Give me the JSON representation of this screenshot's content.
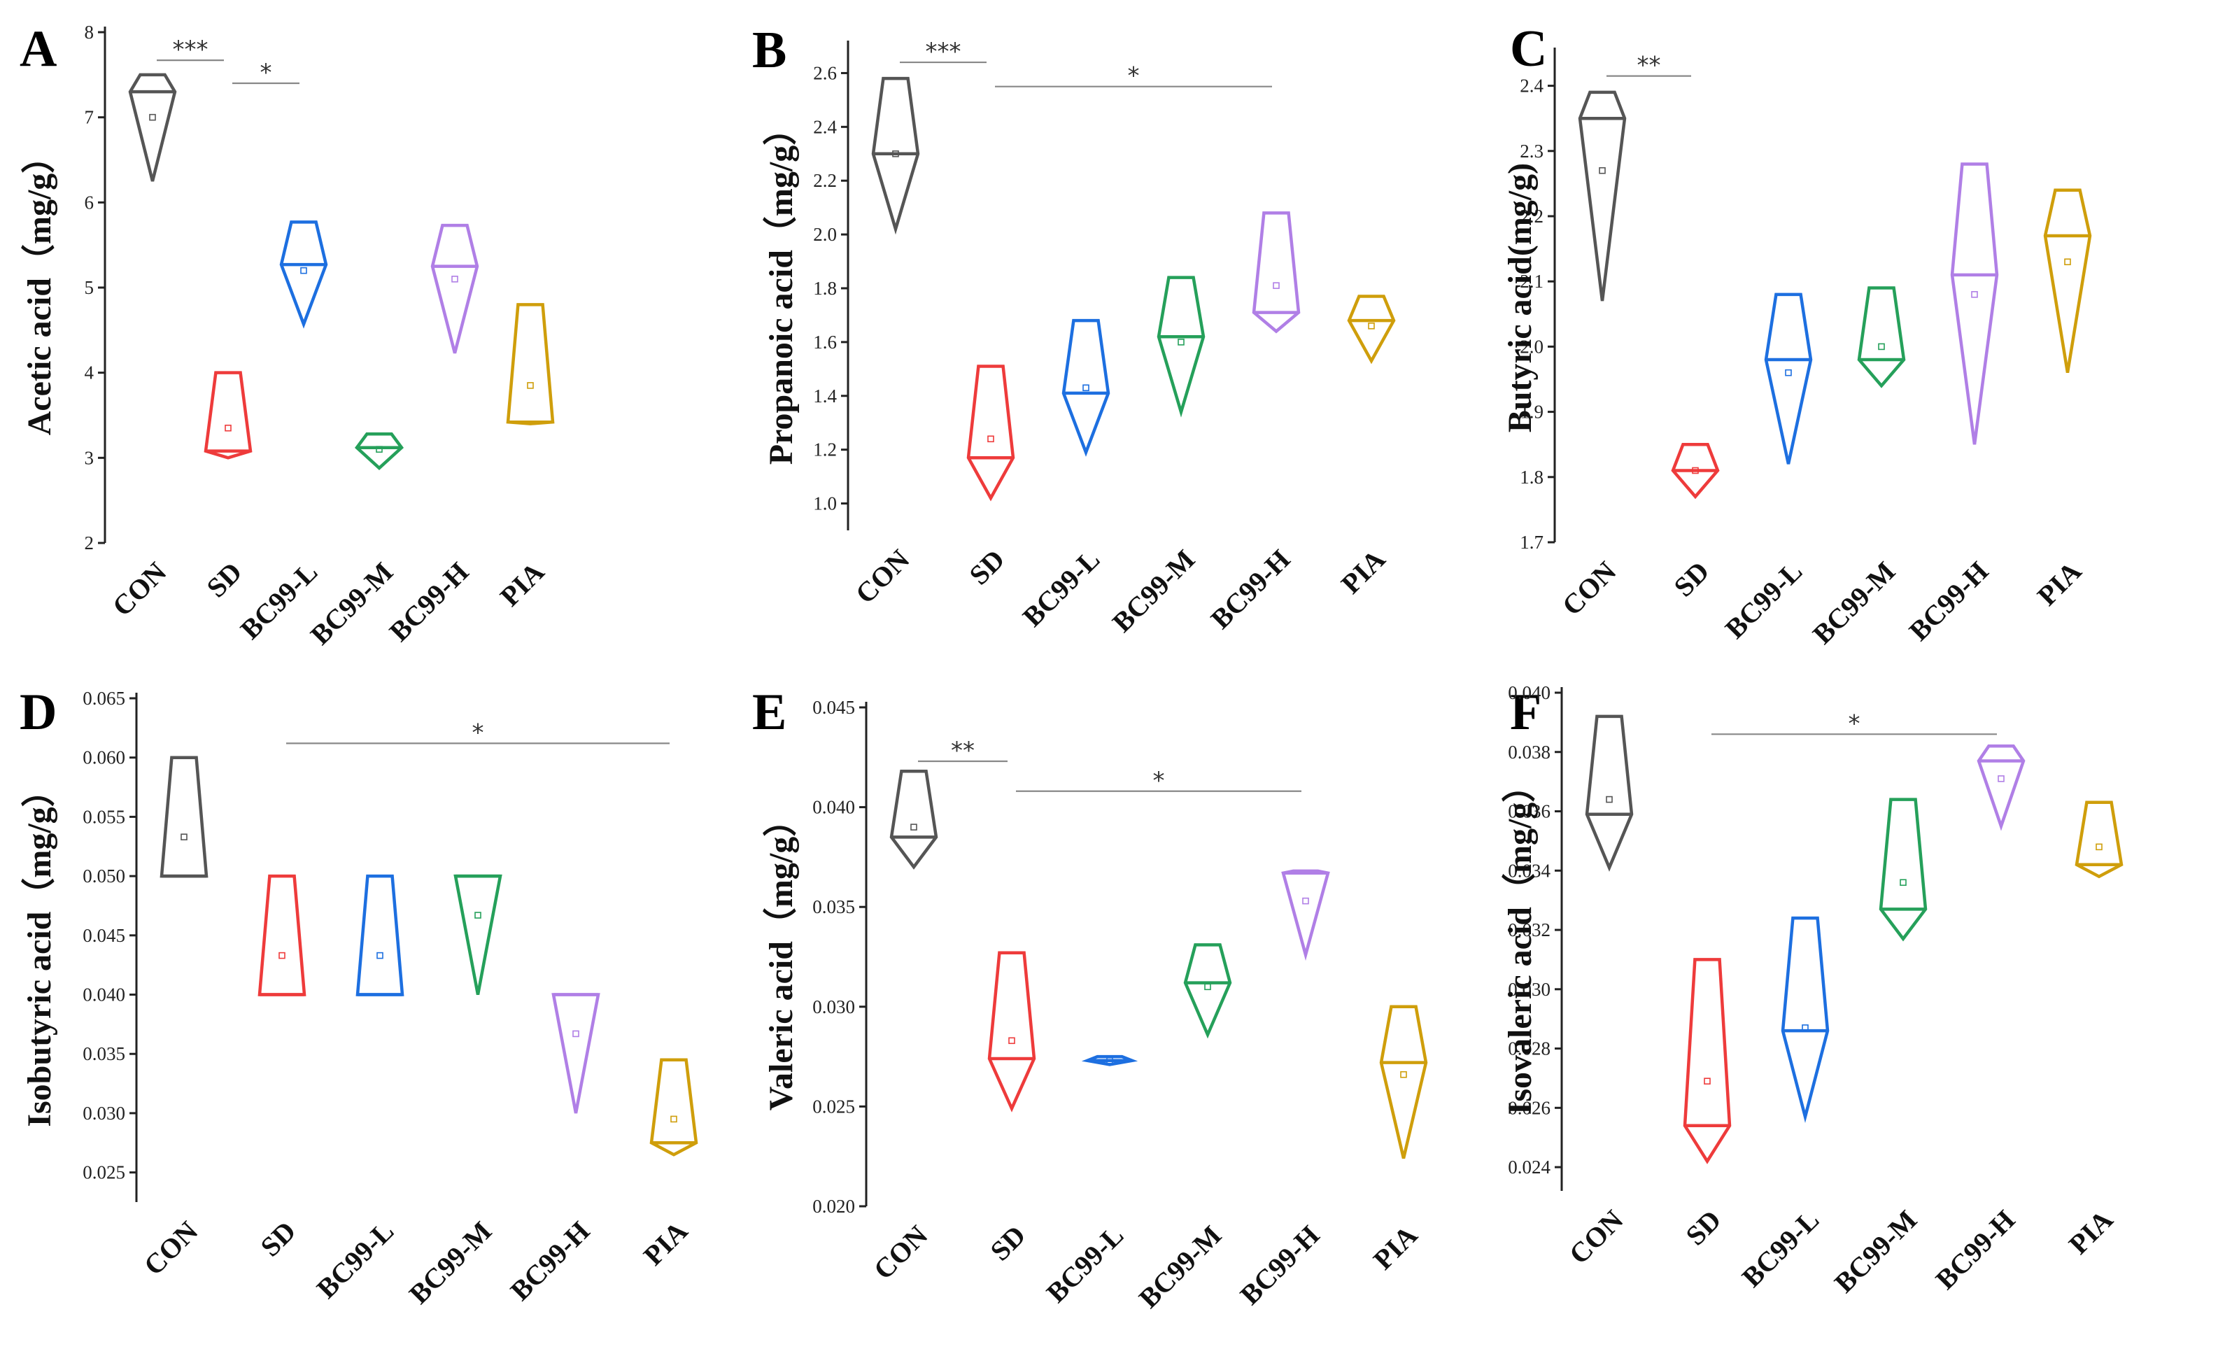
{
  "colors": {
    "CON": "#555555",
    "SD": "#ee3b3b",
    "BC99-L": "#1d6fe0",
    "BC99-M": "#25a05a",
    "BC99-H": "#b07fe6",
    "PIA": "#cf9e0b"
  },
  "chart_data": [
    {
      "type": "violin",
      "panel": "A",
      "ylabel": "Acetic acid（mg/g）",
      "categories": [
        "CON",
        "SD",
        "BC99-L",
        "BC99-M",
        "BC99-H",
        "PIA"
      ],
      "ylim": [
        2,
        8
      ],
      "yticks": [
        2,
        3,
        4,
        5,
        6,
        7,
        8
      ],
      "tick_labels": [
        "2",
        "3",
        "4",
        "5",
        "6",
        "7",
        "8"
      ],
      "groups": [
        {
          "max": 7.5,
          "min": 6.25,
          "median": 7.3,
          "mean": 7.0
        },
        {
          "max": 4.0,
          "min": 3.0,
          "median": 3.08,
          "mean": 3.35
        },
        {
          "max": 5.77,
          "min": 4.57,
          "median": 5.27,
          "mean": 5.2
        },
        {
          "max": 3.28,
          "min": 2.88,
          "median": 3.12,
          "mean": 3.1
        },
        {
          "max": 5.73,
          "min": 4.23,
          "median": 5.25,
          "mean": 5.1
        },
        {
          "max": 4.8,
          "min": 3.4,
          "median": 3.42,
          "mean": 3.85
        }
      ],
      "significance": [
        {
          "from": 0,
          "to": 1,
          "label": "***",
          "y": 7.67
        },
        {
          "from": 1,
          "to": 2,
          "label": "*",
          "y": 7.4
        }
      ]
    },
    {
      "type": "violin",
      "panel": "B",
      "ylabel": "Propanoic acid（mg/g）",
      "categories": [
        "CON",
        "SD",
        "BC99-L",
        "BC99-M",
        "BC99-H",
        "PIA"
      ],
      "ylim": [
        0.9,
        2.7
      ],
      "yticks": [
        1.0,
        1.2,
        1.4,
        1.6,
        1.8,
        2.0,
        2.2,
        2.4,
        2.6
      ],
      "tick_labels": [
        "1.0",
        "1.2",
        "1.4",
        "1.6",
        "1.8",
        "2.0",
        "2.2",
        "2.4",
        "2.6"
      ],
      "groups": [
        {
          "max": 2.58,
          "min": 2.02,
          "median": 2.3,
          "mean": 2.3
        },
        {
          "max": 1.51,
          "min": 1.02,
          "median": 1.17,
          "mean": 1.24
        },
        {
          "max": 1.68,
          "min": 1.19,
          "median": 1.41,
          "mean": 1.43
        },
        {
          "max": 1.84,
          "min": 1.34,
          "median": 1.62,
          "mean": 1.6
        },
        {
          "max": 2.08,
          "min": 1.64,
          "median": 1.71,
          "mean": 1.81
        },
        {
          "max": 1.77,
          "min": 1.53,
          "median": 1.68,
          "mean": 1.66
        }
      ],
      "significance": [
        {
          "from": 0,
          "to": 1,
          "label": "***",
          "y": 2.64
        },
        {
          "from": 1,
          "to": 4,
          "label": "*",
          "y": 2.55
        }
      ]
    },
    {
      "type": "violin",
      "panel": "C",
      "ylabel": "Butyric acid(mg/g)",
      "categories": [
        "CON",
        "SD",
        "BC99-L",
        "BC99-M",
        "BC99-H",
        "PIA"
      ],
      "ylim": [
        1.7,
        2.45
      ],
      "yticks": [
        1.7,
        1.8,
        1.9,
        2.0,
        2.1,
        2.2,
        2.3,
        2.4
      ],
      "tick_labels": [
        "1.7",
        "1.8",
        "1.9",
        "2.0",
        "2.1",
        "2.2",
        "2.3",
        "2.4"
      ],
      "groups": [
        {
          "max": 2.39,
          "min": 2.07,
          "median": 2.35,
          "mean": 2.27
        },
        {
          "max": 1.85,
          "min": 1.77,
          "median": 1.81,
          "mean": 1.81
        },
        {
          "max": 2.08,
          "min": 1.82,
          "median": 1.98,
          "mean": 1.96
        },
        {
          "max": 2.09,
          "min": 1.94,
          "median": 1.98,
          "mean": 2.0
        },
        {
          "max": 2.28,
          "min": 1.85,
          "median": 2.11,
          "mean": 2.08
        },
        {
          "max": 2.24,
          "min": 1.96,
          "median": 2.17,
          "mean": 2.13
        }
      ],
      "significance": [
        {
          "from": 0,
          "to": 1,
          "label": "**",
          "y": 2.415
        }
      ]
    },
    {
      "type": "violin",
      "panel": "D",
      "ylabel": "Isobutyric acid（mg/g）",
      "categories": [
        "CON",
        "SD",
        "BC99-L",
        "BC99-M",
        "BC99-H",
        "PIA"
      ],
      "ylim": [
        0.0225,
        0.065
      ],
      "yticks": [
        0.025,
        0.03,
        0.035,
        0.04,
        0.045,
        0.05,
        0.055,
        0.06,
        0.065
      ],
      "tick_labels": [
        "0.025",
        "0.030",
        "0.035",
        "0.040",
        "0.045",
        "0.050",
        "0.055",
        "0.060",
        "0.065"
      ],
      "groups": [
        {
          "max": 0.06,
          "min": 0.05,
          "median": 0.05,
          "mean": 0.0533
        },
        {
          "max": 0.05,
          "min": 0.04,
          "median": 0.04,
          "mean": 0.0433
        },
        {
          "max": 0.05,
          "min": 0.04,
          "median": 0.04,
          "mean": 0.0433
        },
        {
          "max": 0.05,
          "min": 0.04,
          "median": 0.05,
          "mean": 0.0467
        },
        {
          "max": 0.04,
          "min": 0.03,
          "median": 0.04,
          "mean": 0.0367
        },
        {
          "max": 0.0345,
          "min": 0.0265,
          "median": 0.0275,
          "mean": 0.0295
        }
      ],
      "significance": [
        {
          "from": 1,
          "to": 5,
          "label": "*",
          "y": 0.0612
        }
      ]
    },
    {
      "type": "violin",
      "panel": "E",
      "ylabel": "Valeric acid（mg/g）",
      "categories": [
        "CON",
        "SD",
        "BC99-L",
        "BC99-M",
        "BC99-H",
        "PIA"
      ],
      "ylim": [
        0.02,
        0.045
      ],
      "yticks": [
        0.02,
        0.025,
        0.03,
        0.035,
        0.04,
        0.045
      ],
      "tick_labels": [
        "0.020",
        "0.025",
        "0.030",
        "0.035",
        "0.040",
        "0.045"
      ],
      "groups": [
        {
          "max": 0.0418,
          "min": 0.037,
          "median": 0.0385,
          "mean": 0.039
        },
        {
          "max": 0.0327,
          "min": 0.0249,
          "median": 0.0274,
          "mean": 0.0283
        },
        {
          "max": 0.0275,
          "min": 0.0271,
          "median": 0.0273,
          "mean": 0.0273
        },
        {
          "max": 0.0331,
          "min": 0.0286,
          "median": 0.0312,
          "mean": 0.031
        },
        {
          "max": 0.0368,
          "min": 0.0326,
          "median": 0.0367,
          "mean": 0.0353
        },
        {
          "max": 0.03,
          "min": 0.0224,
          "median": 0.0272,
          "mean": 0.0266
        }
      ],
      "significance": [
        {
          "from": 0,
          "to": 1,
          "label": "**",
          "y": 0.0423
        },
        {
          "from": 1,
          "to": 4,
          "label": "*",
          "y": 0.0408
        }
      ]
    },
    {
      "type": "violin",
      "panel": "F",
      "ylabel": "Isovaleric acid（mg/g）",
      "categories": [
        "CON",
        "SD",
        "BC99-L",
        "BC99-M",
        "BC99-H",
        "PIA"
      ],
      "ylim": [
        0.0232,
        0.04
      ],
      "yticks": [
        0.024,
        0.026,
        0.028,
        0.03,
        0.032,
        0.034,
        0.036,
        0.038,
        0.04
      ],
      "tick_labels": [
        "0.024",
        "0.026",
        "0.028",
        "0.030",
        "0.032",
        "0.034",
        "0.036",
        "0.038",
        "0.040"
      ],
      "groups": [
        {
          "max": 0.0392,
          "min": 0.0341,
          "median": 0.0359,
          "mean": 0.0364
        },
        {
          "max": 0.031,
          "min": 0.0242,
          "median": 0.0254,
          "mean": 0.0269
        },
        {
          "max": 0.0324,
          "min": 0.0257,
          "median": 0.0286,
          "mean": 0.0287
        },
        {
          "max": 0.0364,
          "min": 0.0317,
          "median": 0.0327,
          "mean": 0.0336
        },
        {
          "max": 0.0382,
          "min": 0.0355,
          "median": 0.0377,
          "mean": 0.0371
        },
        {
          "max": 0.0363,
          "min": 0.0338,
          "median": 0.0342,
          "mean": 0.0348
        }
      ],
      "significance": [
        {
          "from": 1,
          "to": 4,
          "label": "*",
          "y": 0.0386
        }
      ]
    }
  ]
}
